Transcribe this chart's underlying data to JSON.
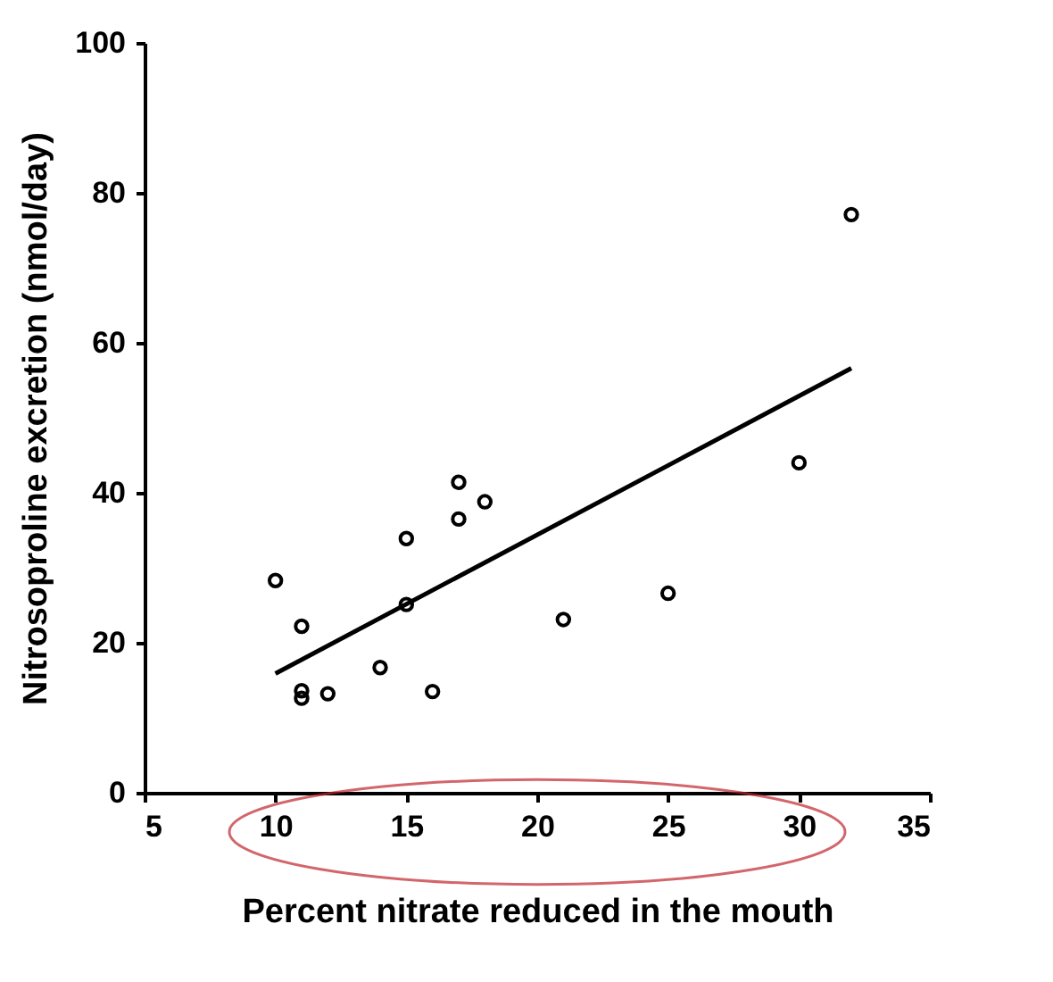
{
  "chart_data": {
    "type": "scatter",
    "xlabel": "Percent nitrate reduced in the mouth",
    "ylabel": "Nitrosoproline excretion (nmol/day)",
    "xlim": [
      5,
      35
    ],
    "xticks": [
      5,
      10,
      15,
      20,
      25,
      30,
      35
    ],
    "ylim": [
      0,
      100
    ],
    "yticks": [
      0,
      20,
      40,
      60,
      80,
      100
    ],
    "grid": false,
    "series": [
      {
        "color": "#000000",
        "marker": "circle",
        "x": [
          10,
          11,
          11,
          11,
          12,
          14,
          15,
          15,
          16,
          17,
          17,
          18,
          21,
          25,
          30,
          32
        ],
        "values": [
          28.3,
          22.2,
          13.6,
          12.6,
          13.2,
          16.7,
          33.9,
          25.1,
          13.5,
          41.4,
          36.5,
          38.8,
          23.1,
          26.6,
          44.0,
          77.1
        ]
      },
      {
        "type": "line",
        "color": "#000000",
        "line_style": "solid",
        "x": [
          10,
          32
        ],
        "values": [
          15.9,
          56.6
        ]
      }
    ]
  }
}
